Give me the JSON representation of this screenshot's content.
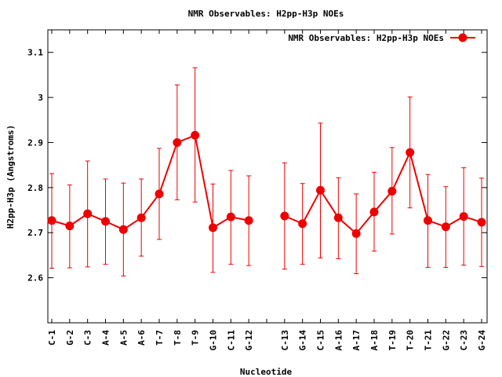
{
  "chart_data": {
    "type": "line",
    "title": "NMR Observables: H2pp-H3p NOEs",
    "xlabel": "Nucleotide",
    "ylabel": "H2pp-H3p (Angstroms)",
    "ylim": [
      2.5,
      3.15
    ],
    "yticks": [
      "2.6",
      "2.7",
      "2.8",
      "2.9",
      "3",
      "3.1"
    ],
    "legend_position": "top-right",
    "grid": false,
    "series": [
      {
        "name": "NMR Observables: H2pp-H3p NOEs",
        "color": "#ee0000",
        "points": [
          {
            "x": "C-1",
            "y": 2.727,
            "err_low": 2.621,
            "err_high": 2.831
          },
          {
            "x": "G-2",
            "y": 2.715,
            "err_low": 2.622,
            "err_high": 2.806
          },
          {
            "x": "C-3",
            "y": 2.742,
            "err_low": 2.624,
            "err_high": 2.859
          },
          {
            "x": "A-4",
            "y": 2.725,
            "err_low": 2.63,
            "err_high": 2.819
          },
          {
            "x": "A-5",
            "y": 2.707,
            "err_low": 2.604,
            "err_high": 2.81
          },
          {
            "x": "A-6",
            "y": 2.733,
            "err_low": 2.648,
            "err_high": 2.819
          },
          {
            "x": "T-7",
            "y": 2.786,
            "err_low": 2.685,
            "err_high": 2.887
          },
          {
            "x": "T-8",
            "y": 2.9,
            "err_low": 2.773,
            "err_high": 3.028
          },
          {
            "x": "T-9",
            "y": 2.916,
            "err_low": 2.768,
            "err_high": 3.066
          },
          {
            "x": "G-10",
            "y": 2.711,
            "err_low": 2.612,
            "err_high": 2.808
          },
          {
            "x": "C-11",
            "y": 2.735,
            "err_low": 2.63,
            "err_high": 2.838
          },
          {
            "x": "G-12",
            "y": 2.727,
            "err_low": 2.627,
            "err_high": 2.826
          },
          {
            "x": "",
            "y": null,
            "err_low": null,
            "err_high": null
          },
          {
            "x": "C-13",
            "y": 2.737,
            "err_low": 2.619,
            "err_high": 2.855
          },
          {
            "x": "G-14",
            "y": 2.72,
            "err_low": 2.63,
            "err_high": 2.809
          },
          {
            "x": "C-15",
            "y": 2.794,
            "err_low": 2.644,
            "err_high": 2.943
          },
          {
            "x": "A-16",
            "y": 2.733,
            "err_low": 2.642,
            "err_high": 2.822
          },
          {
            "x": "A-17",
            "y": 2.698,
            "err_low": 2.609,
            "err_high": 2.786
          },
          {
            "x": "A-18",
            "y": 2.746,
            "err_low": 2.659,
            "err_high": 2.834
          },
          {
            "x": "T-19",
            "y": 2.792,
            "err_low": 2.697,
            "err_high": 2.889
          },
          {
            "x": "T-20",
            "y": 2.878,
            "err_low": 2.755,
            "err_high": 3.001
          },
          {
            "x": "T-21",
            "y": 2.727,
            "err_low": 2.623,
            "err_high": 2.829
          },
          {
            "x": "G-22",
            "y": 2.713,
            "err_low": 2.623,
            "err_high": 2.802
          },
          {
            "x": "C-23",
            "y": 2.736,
            "err_low": 2.628,
            "err_high": 2.844
          },
          {
            "x": "G-24",
            "y": 2.723,
            "err_low": 2.625,
            "err_high": 2.821
          }
        ]
      }
    ]
  }
}
